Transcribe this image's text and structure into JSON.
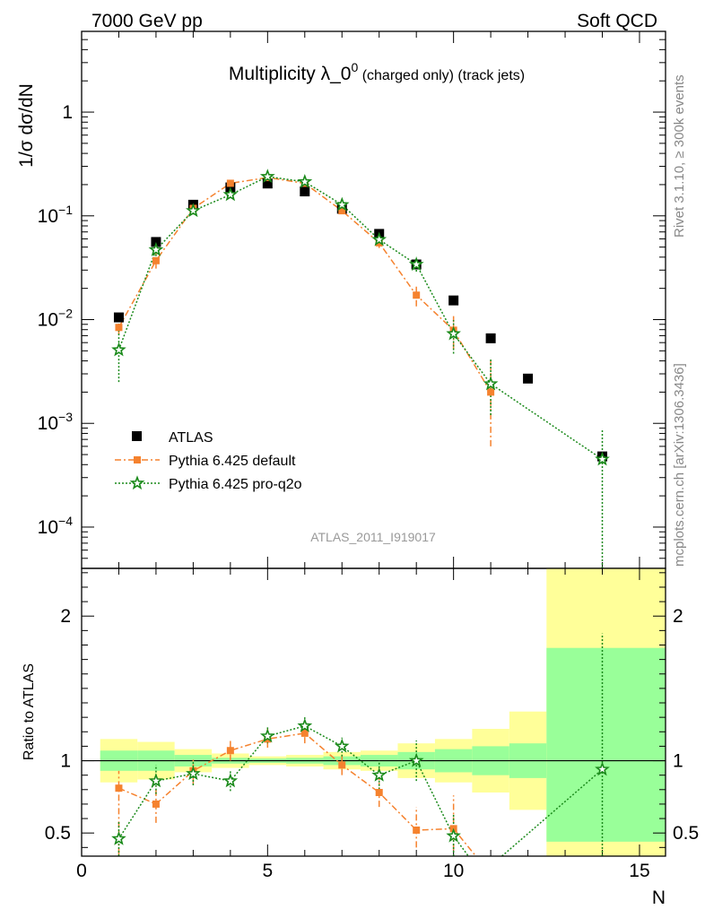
{
  "header": {
    "energy_label": "7000 GeV pp",
    "category_label": "Soft QCD"
  },
  "side_labels": {
    "rivet": "Rivet 3.1.10, ≥ 300k events",
    "source": "mcplots.cern.ch [arXiv:1306.3436]"
  },
  "colors": {
    "data": "#000000",
    "pythia_default": "#f5822e",
    "pythia_proq2o": "#1a8a1a",
    "band_inner": "#99ff99",
    "band_outer": "#ffff99"
  },
  "chart_data": [
    {
      "type": "scatter",
      "title_main": "Multiplicity λ_0",
      "title_sup": "0",
      "title_suffix": " (charged only) (track jets)",
      "ylabel": "1/σ dσ/dN",
      "xlabel": "",
      "yscale": "log",
      "xlim": [
        0,
        15.7
      ],
      "ylim": [
        4e-05,
        6
      ],
      "y_ticks": [
        {
          "value": 0.0001,
          "base": "10",
          "exp": "−4"
        },
        {
          "value": 0.001,
          "base": "10",
          "exp": "−3"
        },
        {
          "value": 0.01,
          "base": "10",
          "exp": "−2"
        },
        {
          "value": 0.1,
          "base": "10",
          "exp": "−1"
        },
        {
          "value": 1,
          "base": "1",
          "exp": ""
        }
      ],
      "watermark": "ATLAS_2011_I919017",
      "legend_position": "bottom-left",
      "legend": [
        "ATLAS",
        "Pythia 6.425 default",
        "Pythia 6.425 pro-q2o"
      ],
      "series": [
        {
          "name": "ATLAS",
          "x": [
            1,
            2,
            3,
            4,
            5,
            6,
            7,
            8,
            9,
            10,
            11,
            12,
            14
          ],
          "y": [
            0.0105,
            0.056,
            0.128,
            0.188,
            0.205,
            0.172,
            0.117,
            0.067,
            0.034,
            0.0153,
            0.0066,
            0.0027,
            0.00048
          ]
        },
        {
          "name": "Pythia 6.425 default",
          "x": [
            1,
            2,
            3,
            4,
            5,
            6,
            7,
            8,
            9,
            10,
            11
          ],
          "y": [
            0.0084,
            0.037,
            0.118,
            0.206,
            0.234,
            0.206,
            0.112,
            0.055,
            0.0172,
            0.0079,
            0.002
          ],
          "err_lo": [
            0.0072,
            0.031,
            0.11,
            0.197,
            0.228,
            0.199,
            0.105,
            0.049,
            0.0134,
            0.0052,
            0.0006
          ],
          "err_hi": [
            0.0096,
            0.044,
            0.126,
            0.215,
            0.24,
            0.213,
            0.119,
            0.062,
            0.021,
            0.0108,
            0.004
          ]
        },
        {
          "name": "Pythia 6.425 pro-q2o",
          "x": [
            1,
            2,
            3,
            4,
            5,
            6,
            7,
            8,
            9,
            10,
            11,
            14
          ],
          "y": [
            0.0051,
            0.047,
            0.112,
            0.16,
            0.239,
            0.213,
            0.128,
            0.059,
            0.034,
            0.0073,
            0.0024,
            0.00045
          ],
          "err_lo": [
            0.0025,
            0.041,
            0.103,
            0.149,
            0.232,
            0.205,
            0.121,
            0.053,
            0.029,
            0.0047,
            0.0012,
            3e-05
          ],
          "err_hi": [
            0.0078,
            0.054,
            0.121,
            0.171,
            0.246,
            0.221,
            0.136,
            0.066,
            0.04,
            0.0099,
            0.0042,
            0.00088
          ]
        }
      ]
    },
    {
      "type": "scatter",
      "ylabel": "Ratio to ATLAS",
      "xlabel": "N",
      "xlim": [
        0,
        15.7
      ],
      "ylim": [
        0.34,
        2.33
      ],
      "x_ticks": [
        0,
        5,
        10,
        15
      ],
      "y_ticks": [
        0.5,
        1,
        2
      ],
      "reference_line": 1,
      "bands": [
        {
          "x0": 0.5,
          "x1": 1.5,
          "inner": [
            0.93,
            1.07
          ],
          "outer": [
            0.85,
            1.15
          ]
        },
        {
          "x0": 1.5,
          "x1": 2.5,
          "inner": [
            0.93,
            1.07
          ],
          "outer": [
            0.87,
            1.13
          ]
        },
        {
          "x0": 2.5,
          "x1": 3.5,
          "inner": [
            0.96,
            1.04
          ],
          "outer": [
            0.92,
            1.08
          ]
        },
        {
          "x0": 3.5,
          "x1": 4.5,
          "inner": [
            0.98,
            1.02
          ],
          "outer": [
            0.95,
            1.05
          ]
        },
        {
          "x0": 4.5,
          "x1": 5.5,
          "inner": [
            0.985,
            1.015
          ],
          "outer": [
            0.97,
            1.03
          ]
        },
        {
          "x0": 5.5,
          "x1": 6.5,
          "inner": [
            0.98,
            1.02
          ],
          "outer": [
            0.96,
            1.04
          ]
        },
        {
          "x0": 6.5,
          "x1": 7.5,
          "inner": [
            0.97,
            1.03
          ],
          "outer": [
            0.94,
            1.06
          ]
        },
        {
          "x0": 7.5,
          "x1": 8.5,
          "inner": [
            0.96,
            1.04
          ],
          "outer": [
            0.93,
            1.07
          ]
        },
        {
          "x0": 8.5,
          "x1": 9.5,
          "inner": [
            0.94,
            1.06
          ],
          "outer": [
            0.88,
            1.12
          ]
        },
        {
          "x0": 9.5,
          "x1": 10.5,
          "inner": [
            0.92,
            1.08
          ],
          "outer": [
            0.85,
            1.15
          ]
        },
        {
          "x0": 10.5,
          "x1": 11.5,
          "inner": [
            0.9,
            1.1
          ],
          "outer": [
            0.78,
            1.22
          ]
        },
        {
          "x0": 11.5,
          "x1": 12.5,
          "inner": [
            0.88,
            1.12
          ],
          "outer": [
            0.66,
            1.34
          ]
        },
        {
          "x0": 12.5,
          "x1": 15.7,
          "inner": [
            0.44,
            1.78
          ],
          "outer": [
            0.34,
            2.33
          ]
        }
      ],
      "series": [
        {
          "name": "Pythia 6.425 default",
          "x": [
            1,
            2,
            3,
            4,
            5,
            6,
            7,
            8,
            9,
            10
          ],
          "y": [
            0.81,
            0.7,
            0.93,
            1.07,
            1.15,
            1.19,
            0.97,
            0.78,
            0.52,
            0.53
          ],
          "err_lo": [
            0.35,
            0.57,
            0.84,
            1.0,
            1.09,
            1.12,
            0.9,
            0.68,
            0.4,
            0.38
          ],
          "err_hi": [
            0.93,
            0.82,
            1.01,
            1.15,
            1.22,
            1.25,
            1.05,
            0.89,
            0.68,
            0.76
          ],
          "tail_to": {
            "x": 10.6,
            "y": 0.34
          }
        },
        {
          "name": "Pythia 6.425 pro-q2o",
          "x": [
            1,
            2,
            3,
            4,
            5,
            6,
            7,
            8,
            9,
            10,
            14
          ],
          "y": [
            0.46,
            0.86,
            0.91,
            0.86,
            1.17,
            1.24,
            1.1,
            0.9,
            1.0,
            0.48,
            0.94
          ],
          "err_lo": [
            0.34,
            0.77,
            0.83,
            0.79,
            1.12,
            1.19,
            1.03,
            0.8,
            0.86,
            0.34,
            0.34
          ],
          "err_hi": [
            0.58,
            0.97,
            0.99,
            0.93,
            1.23,
            1.3,
            1.16,
            1.0,
            1.14,
            0.63,
            1.88
          ],
          "tail_from": {
            "x": 11.3,
            "y": 0.34
          }
        }
      ]
    }
  ]
}
